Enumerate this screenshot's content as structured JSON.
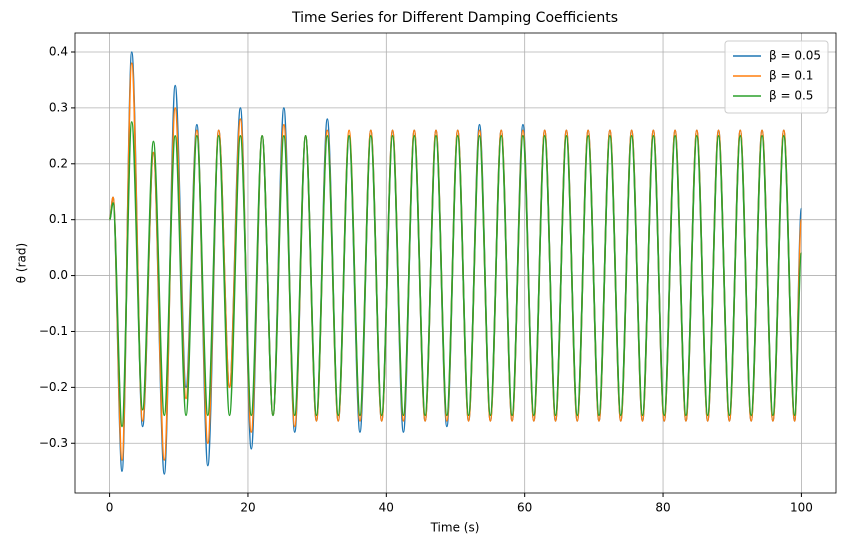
{
  "chart_data": {
    "type": "line",
    "title": "Time Series for Different Damping Coefficients",
    "x_label": "Time (s)",
    "y_label": "θ (rad)",
    "x": [
      0,
      0.5,
      1.8,
      3.2,
      4.77,
      6.34,
      7.91,
      9.48,
      11.05,
      12.62,
      14.2,
      15.77,
      17.34,
      18.91,
      20.48,
      22.05,
      23.62,
      25.19,
      26.76,
      28.33,
      29.9,
      31.47,
      33.05,
      34.62,
      36.19,
      37.76,
      39.33,
      40.9,
      42.47,
      44.04,
      45.61,
      47.18,
      48.75,
      50.32,
      51.89,
      53.47,
      55.04,
      56.61,
      58.18,
      59.75,
      61.32,
      62.89,
      64.46,
      66.03,
      67.6,
      69.17,
      70.74,
      72.32,
      73.89,
      75.46,
      77.03,
      78.6,
      80.17,
      81.74,
      83.31,
      84.88,
      86.45,
      88.02,
      89.59,
      91.16,
      92.74,
      94.31,
      95.88,
      97.45,
      99.02,
      100
    ],
    "series": [
      {
        "name": "β = 0.05",
        "color": "#1f77b4",
        "values": [
          0.1,
          0.14,
          -0.35,
          0.4,
          -0.27,
          0.22,
          -0.355,
          0.34,
          -0.2,
          0.27,
          -0.34,
          0.26,
          -0.2,
          0.3,
          -0.31,
          0.25,
          -0.25,
          0.3,
          -0.28,
          0.25,
          -0.26,
          0.28,
          -0.26,
          0.25,
          -0.28,
          0.26,
          -0.26,
          0.26,
          -0.28,
          0.26,
          -0.26,
          0.26,
          -0.27,
          0.26,
          -0.26,
          0.27,
          -0.26,
          0.26,
          -0.26,
          0.27,
          -0.26,
          0.26,
          -0.26,
          0.26,
          -0.26,
          0.26,
          -0.26,
          0.26,
          -0.26,
          0.26,
          -0.26,
          0.26,
          -0.26,
          0.26,
          -0.26,
          0.26,
          -0.26,
          0.26,
          -0.26,
          0.26,
          -0.26,
          0.26,
          -0.26,
          0.26,
          -0.26,
          0.12
        ]
      },
      {
        "name": "β = 0.1",
        "color": "#ff7f0e",
        "values": [
          0.1,
          0.14,
          -0.33,
          0.38,
          -0.26,
          0.22,
          -0.33,
          0.3,
          -0.22,
          0.26,
          -0.3,
          0.26,
          -0.2,
          0.28,
          -0.28,
          0.25,
          -0.25,
          0.27,
          -0.27,
          0.25,
          -0.26,
          0.26,
          -0.26,
          0.26,
          -0.26,
          0.26,
          -0.26,
          0.26,
          -0.26,
          0.26,
          -0.26,
          0.26,
          -0.26,
          0.26,
          -0.26,
          0.26,
          -0.26,
          0.26,
          -0.26,
          0.26,
          -0.26,
          0.26,
          -0.26,
          0.26,
          -0.26,
          0.26,
          -0.26,
          0.26,
          -0.26,
          0.26,
          -0.26,
          0.26,
          -0.26,
          0.26,
          -0.26,
          0.26,
          -0.26,
          0.26,
          -0.26,
          0.26,
          -0.26,
          0.26,
          -0.26,
          0.26,
          -0.26,
          0.1
        ]
      },
      {
        "name": "β = 0.5",
        "color": "#2ca02c",
        "values": [
          0.1,
          0.13,
          -0.27,
          0.275,
          -0.24,
          0.24,
          -0.25,
          0.25,
          -0.25,
          0.25,
          -0.25,
          0.25,
          -0.25,
          0.25,
          -0.25,
          0.25,
          -0.25,
          0.25,
          -0.25,
          0.25,
          -0.25,
          0.25,
          -0.25,
          0.25,
          -0.25,
          0.25,
          -0.25,
          0.25,
          -0.25,
          0.25,
          -0.25,
          0.25,
          -0.25,
          0.25,
          -0.25,
          0.25,
          -0.25,
          0.25,
          -0.25,
          0.25,
          -0.25,
          0.25,
          -0.25,
          0.25,
          -0.25,
          0.25,
          -0.25,
          0.25,
          -0.25,
          0.25,
          -0.25,
          0.25,
          -0.25,
          0.25,
          -0.25,
          0.25,
          -0.25,
          0.25,
          -0.25,
          0.25,
          -0.25,
          0.25,
          -0.25,
          0.25,
          -0.25,
          0.04
        ]
      }
    ],
    "xlim": [
      -5,
      105
    ],
    "ylim": [
      -0.389,
      0.434
    ],
    "xticks": [
      0,
      20,
      40,
      60,
      80,
      100
    ],
    "yticks": [
      {
        "value": -0.3,
        "label": "−0.3"
      },
      {
        "value": -0.2,
        "label": "−0.2"
      },
      {
        "value": -0.1,
        "label": "−0.1"
      },
      {
        "value": 0,
        "label": "0.0"
      },
      0.1,
      0.2,
      0.3,
      0.4
    ],
    "grid": true,
    "legend": "upper right"
  }
}
